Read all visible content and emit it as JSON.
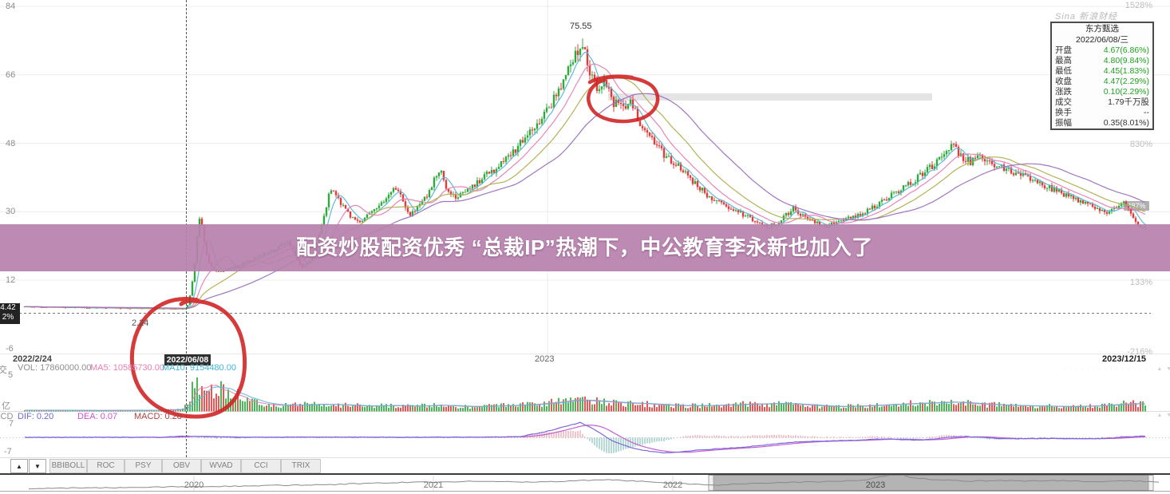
{
  "headline": {
    "text": "配资炒股配资优秀 “总裁IP”热潮下，中公教育李永新也加入了",
    "bg": "#b782ab"
  },
  "watermark": "Sina 新浪财经",
  "info_panel": {
    "title": "东方甄选",
    "date": "2022/06/08/三",
    "rows": [
      {
        "label": "开盘",
        "value": "4.67(6.86%)",
        "type": "up"
      },
      {
        "label": "最高",
        "value": "4.80(9.84%)",
        "type": "up"
      },
      {
        "label": "最低",
        "value": "4.45(1.83%)",
        "type": "up"
      },
      {
        "label": "收盘",
        "value": "4.47(2.29%)",
        "type": "up"
      },
      {
        "label": "涨跌",
        "value": "0.10(2.29%)",
        "type": "up"
      },
      {
        "label": "成交",
        "value": "1.79千万股",
        "type": "plain"
      },
      {
        "label": "换手",
        "value": "--",
        "type": "plain"
      },
      {
        "label": "振幅",
        "value": "0.35(8.01%)",
        "type": "plain"
      }
    ]
  },
  "crosshair": {
    "date_tooltip": "2022/06/08",
    "price_badge": "4.42",
    "pct_badge": "2%",
    "right_badge": "487%",
    "low_label": "2.24",
    "peak_label": "75.55"
  },
  "axes": {
    "price_ticks": [
      "84",
      "66",
      "48",
      "30",
      "12",
      "-6"
    ],
    "pct_ticks": [
      "1528%",
      "830%",
      "133%",
      "-216%"
    ],
    "dates": [
      "2022/2/24",
      "2023",
      "2023/12/15"
    ],
    "vol_ticks": [
      "5",
      "亿"
    ],
    "macd_ticks": [
      "7",
      "-7"
    ]
  },
  "indicator_labels": {
    "vol_section": "成交",
    "vol": "VOL: 17860000.00",
    "ma5": "MA5: 10585730.00",
    "ma10": "MA10: 9154480.00",
    "macd_section": "MACD",
    "dif": "DIF: 0.20",
    "dea": "DEA: 0.07",
    "macd": "MACD: 0.28"
  },
  "dots_row": "· · · · · · · · · · · · · · · ·  ▲ ▼",
  "tabs": [
    "BBIBOLL",
    "ROC",
    "PSY",
    "OBV",
    "WVAD",
    "CCI",
    "TRIX"
  ],
  "timeline": {
    "years": [
      "2020",
      "2021",
      "2022",
      "2023"
    ]
  },
  "chart_data": {
    "type": "candlestick",
    "symbol": "东方甄选",
    "visible_range": [
      "2022/2/24",
      "2023/12/15"
    ],
    "price_axis": {
      "ticks": [
        84,
        66,
        48,
        30,
        12,
        -6
      ]
    },
    "pct_axis": {
      "ticks": [
        1528,
        830,
        133,
        -216
      ]
    },
    "key_points": {
      "peak_high": 75.55,
      "crosshair_price": 4.42,
      "pre_surge_low": 2.24
    },
    "colors": {
      "up": "#2fa93c",
      "down": "#e23b3b",
      "ma": [
        "#56b6d8",
        "#e57fb4",
        "#b0ae4e",
        "#9a6fc0"
      ],
      "dif": "#7b68d8",
      "dea": "#c45fd0",
      "hist_pos": "#d4707e",
      "hist_neg": "#4aa39a",
      "annotation": "#cf2020",
      "band": "#e4e4e4"
    },
    "price_path": [
      [
        30,
        5.0
      ],
      [
        80,
        4.85
      ],
      [
        130,
        4.7
      ],
      [
        180,
        4.55
      ],
      [
        215,
        4.45
      ],
      [
        228,
        4.5
      ],
      [
        233,
        4.6
      ],
      [
        236,
        6
      ],
      [
        239,
        9
      ],
      [
        242,
        13
      ],
      [
        245,
        18
      ],
      [
        248,
        26
      ],
      [
        251,
        30
      ],
      [
        254,
        25
      ],
      [
        257,
        20
      ],
      [
        261,
        17
      ],
      [
        266,
        15
      ],
      [
        272,
        14
      ],
      [
        280,
        14.5
      ],
      [
        290,
        15.2
      ],
      [
        300,
        16
      ],
      [
        312,
        17
      ],
      [
        325,
        18.2
      ],
      [
        338,
        19.5
      ],
      [
        350,
        21
      ],
      [
        360,
        22
      ],
      [
        366,
        20
      ],
      [
        372,
        17.5
      ],
      [
        379,
        15.5
      ],
      [
        386,
        16.5
      ],
      [
        393,
        19
      ],
      [
        400,
        24
      ],
      [
        406,
        29
      ],
      [
        412,
        34
      ],
      [
        416,
        36.5
      ],
      [
        421,
        34.5
      ],
      [
        427,
        32
      ],
      [
        434,
        30
      ],
      [
        441,
        28.2
      ],
      [
        449,
        27
      ],
      [
        457,
        28
      ],
      [
        465,
        29.8
      ],
      [
        473,
        31.5
      ],
      [
        481,
        33
      ],
      [
        489,
        35.5
      ],
      [
        496,
        36.6
      ],
      [
        502,
        34.5
      ],
      [
        508,
        31.5
      ],
      [
        514,
        29.5
      ],
      [
        520,
        30.5
      ],
      [
        527,
        32
      ],
      [
        534,
        34
      ],
      [
        541,
        36.5
      ],
      [
        547,
        40
      ],
      [
        552,
        41.5
      ],
      [
        557,
        38
      ],
      [
        563,
        34.5
      ],
      [
        570,
        34
      ],
      [
        578,
        35
      ],
      [
        587,
        36.2
      ],
      [
        596,
        37.5
      ],
      [
        606,
        39
      ],
      [
        616,
        40.5
      ],
      [
        627,
        42.5
      ],
      [
        638,
        44.5
      ],
      [
        649,
        47
      ],
      [
        660,
        50
      ],
      [
        670,
        52.5
      ],
      [
        680,
        55
      ],
      [
        690,
        58
      ],
      [
        700,
        62
      ],
      [
        710,
        66.5
      ],
      [
        719,
        70
      ],
      [
        727,
        73.5
      ],
      [
        733,
        71.5
      ],
      [
        739,
        67
      ],
      [
        745,
        63.5
      ],
      [
        751,
        61
      ],
      [
        757,
        63.5
      ],
      [
        763,
        61
      ],
      [
        769,
        58.5
      ],
      [
        776,
        60
      ],
      [
        782,
        57.5
      ],
      [
        789,
        59
      ],
      [
        796,
        56
      ],
      [
        803,
        53
      ],
      [
        811,
        50.5
      ],
      [
        819,
        48.5
      ],
      [
        828,
        46
      ],
      [
        838,
        44
      ],
      [
        849,
        42
      ],
      [
        861,
        39.5
      ],
      [
        873,
        37
      ],
      [
        886,
        34.5
      ],
      [
        899,
        32.5
      ],
      [
        912,
        31
      ],
      [
        925,
        29.8
      ],
      [
        938,
        28.5
      ],
      [
        951,
        27
      ],
      [
        963,
        26
      ],
      [
        974,
        27
      ],
      [
        984,
        29
      ],
      [
        994,
        30.8
      ],
      [
        1003,
        29.5
      ],
      [
        1013,
        28
      ],
      [
        1024,
        27
      ],
      [
        1036,
        26.4
      ],
      [
        1048,
        27.2
      ],
      [
        1060,
        28.2
      ],
      [
        1072,
        29
      ],
      [
        1084,
        30
      ],
      [
        1096,
        31.2
      ],
      [
        1108,
        33
      ],
      [
        1120,
        34.8
      ],
      [
        1132,
        36.5
      ],
      [
        1144,
        38
      ],
      [
        1157,
        40
      ],
      [
        1170,
        42.5
      ],
      [
        1182,
        45
      ],
      [
        1192,
        48
      ],
      [
        1199,
        46
      ],
      [
        1207,
        44
      ],
      [
        1216,
        43.2
      ],
      [
        1226,
        44.4
      ],
      [
        1236,
        43.6
      ],
      [
        1247,
        42.5
      ],
      [
        1258,
        41.5
      ],
      [
        1270,
        40.5
      ],
      [
        1282,
        39.5
      ],
      [
        1294,
        38.4
      ],
      [
        1306,
        37.2
      ],
      [
        1318,
        36
      ],
      [
        1330,
        34.8
      ],
      [
        1342,
        33.6
      ],
      [
        1354,
        32.4
      ],
      [
        1366,
        31.4
      ],
      [
        1378,
        30.4
      ],
      [
        1389,
        30
      ],
      [
        1399,
        31
      ],
      [
        1408,
        32.8
      ],
      [
        1415,
        31
      ],
      [
        1421,
        28.5
      ],
      [
        1427,
        26.5
      ],
      [
        1434,
        25.8
      ]
    ],
    "volume_path": [
      [
        30,
        1.5
      ],
      [
        120,
        1.2
      ],
      [
        200,
        1.5
      ],
      [
        230,
        3
      ],
      [
        236,
        16
      ],
      [
        241,
        26
      ],
      [
        246,
        34
      ],
      [
        251,
        30
      ],
      [
        256,
        24
      ],
      [
        262,
        42
      ],
      [
        267,
        30
      ],
      [
        272,
        24
      ],
      [
        278,
        30
      ],
      [
        284,
        24
      ],
      [
        290,
        19
      ],
      [
        297,
        22
      ],
      [
        305,
        15
      ],
      [
        315,
        12
      ],
      [
        330,
        9
      ],
      [
        350,
        7.5
      ],
      [
        375,
        8
      ],
      [
        400,
        9
      ],
      [
        430,
        8
      ],
      [
        460,
        6.5
      ],
      [
        490,
        7.5
      ],
      [
        520,
        6.5
      ],
      [
        550,
        8
      ],
      [
        580,
        6
      ],
      [
        610,
        6.5
      ],
      [
        640,
        7.5
      ],
      [
        670,
        9
      ],
      [
        700,
        12
      ],
      [
        720,
        15
      ],
      [
        740,
        13
      ],
      [
        760,
        12
      ],
      [
        780,
        10.5
      ],
      [
        800,
        10
      ],
      [
        830,
        8
      ],
      [
        860,
        7
      ],
      [
        890,
        7.5
      ],
      [
        920,
        8.5
      ],
      [
        950,
        9.5
      ],
      [
        980,
        10
      ],
      [
        1010,
        8
      ],
      [
        1040,
        6
      ],
      [
        1070,
        6.5
      ],
      [
        1100,
        8
      ],
      [
        1130,
        9.5
      ],
      [
        1160,
        10.5
      ],
      [
        1190,
        12
      ],
      [
        1220,
        9.5
      ],
      [
        1250,
        8
      ],
      [
        1280,
        7
      ],
      [
        1310,
        6.5
      ],
      [
        1340,
        6
      ],
      [
        1370,
        7
      ],
      [
        1395,
        8.5
      ],
      [
        1415,
        10
      ],
      [
        1434,
        9
      ]
    ],
    "macd_path": [
      [
        30,
        0.2
      ],
      [
        200,
        0.2
      ],
      [
        235,
        0.8
      ],
      [
        260,
        0.4
      ],
      [
        300,
        0.2
      ],
      [
        400,
        0.3
      ],
      [
        500,
        0.2
      ],
      [
        600,
        0.3
      ],
      [
        650,
        0.5
      ],
      [
        680,
        2.5
      ],
      [
        700,
        4.5
      ],
      [
        715,
        6
      ],
      [
        727,
        7.2
      ],
      [
        740,
        5
      ],
      [
        755,
        1.5
      ],
      [
        767,
        -1.5
      ],
      [
        785,
        -4
      ],
      [
        800,
        -5.5
      ],
      [
        815,
        -6.5
      ],
      [
        833,
        -7.2
      ],
      [
        850,
        -6.8
      ],
      [
        870,
        -6
      ],
      [
        890,
        -5.5
      ],
      [
        910,
        -5
      ],
      [
        930,
        -4.5
      ],
      [
        950,
        -3.8
      ],
      [
        970,
        -3
      ],
      [
        990,
        -2.2
      ],
      [
        1010,
        -1.8
      ],
      [
        1030,
        -1.6
      ],
      [
        1050,
        -1.4
      ],
      [
        1070,
        -1.2
      ],
      [
        1090,
        -0.8
      ],
      [
        1110,
        -0.5
      ],
      [
        1130,
        -0.9
      ],
      [
        1150,
        -1.2
      ],
      [
        1170,
        -0.6
      ],
      [
        1190,
        0.3
      ],
      [
        1210,
        0.6
      ],
      [
        1230,
        0.2
      ],
      [
        1250,
        -0.3
      ],
      [
        1270,
        -0.5
      ],
      [
        1290,
        -0.4
      ],
      [
        1310,
        -0.3
      ],
      [
        1330,
        -0.4
      ],
      [
        1350,
        -0.5
      ],
      [
        1370,
        -0.4
      ],
      [
        1390,
        -0.2
      ],
      [
        1410,
        0.4
      ],
      [
        1433,
        0.8
      ]
    ],
    "timeline_path": [
      [
        36,
        612
      ],
      [
        150,
        611
      ],
      [
        300,
        609
      ],
      [
        420,
        607
      ],
      [
        480,
        605
      ],
      [
        540,
        604
      ],
      [
        600,
        603
      ],
      [
        660,
        604
      ],
      [
        700,
        603
      ],
      [
        760,
        601
      ],
      [
        820,
        604
      ],
      [
        870,
        607
      ],
      [
        895,
        608
      ],
      [
        930,
        606
      ],
      [
        970,
        605
      ],
      [
        1010,
        604
      ],
      [
        1050,
        603
      ],
      [
        1085,
        601
      ],
      [
        1110,
        596
      ],
      [
        1125,
        593
      ],
      [
        1140,
        598
      ],
      [
        1170,
        601
      ],
      [
        1210,
        603
      ],
      [
        1250,
        602
      ],
      [
        1290,
        603
      ],
      [
        1330,
        602
      ],
      [
        1370,
        604
      ],
      [
        1400,
        602
      ],
      [
        1430,
        603
      ],
      [
        1455,
        604
      ]
    ],
    "annotations": {
      "hand_drawn_circles": 2,
      "color": "#cf2020"
    }
  }
}
